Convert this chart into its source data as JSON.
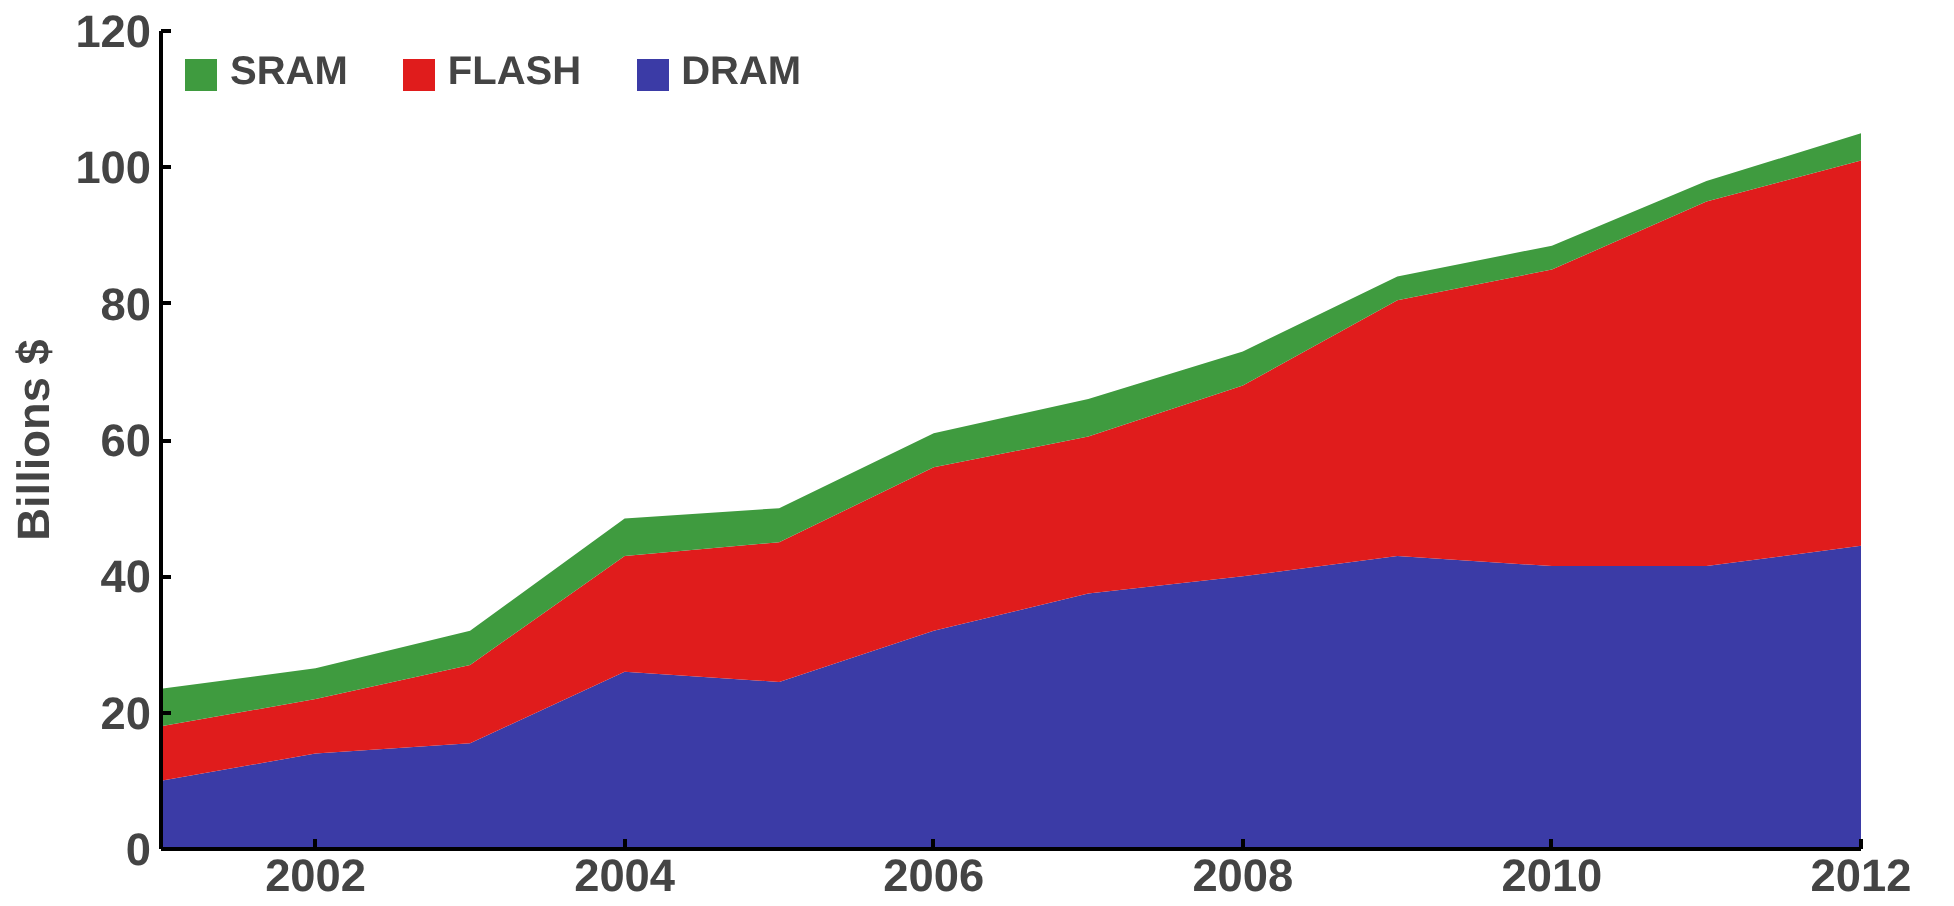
{
  "chart_data": {
    "type": "area",
    "stacked": true,
    "ylabel": "Billions $",
    "x": [
      2001,
      2002,
      2003,
      2004,
      2005,
      2006,
      2007,
      2008,
      2009,
      2010,
      2011,
      2012
    ],
    "series": [
      {
        "name": "DRAM",
        "color": "#3b3ba6",
        "values": [
          10,
          14,
          15.5,
          26,
          24.5,
          32,
          37.5,
          40,
          43,
          41.5,
          41.5,
          44.5
        ]
      },
      {
        "name": "FLASH",
        "color": "#e01c1c",
        "values": [
          8,
          8,
          11.5,
          17,
          20.5,
          24,
          23,
          28,
          37.5,
          43.5,
          53.5,
          56.5
        ]
      },
      {
        "name": "SRAM",
        "color": "#3f9b3f",
        "values": [
          5.5,
          4.5,
          5,
          5.5,
          5,
          5,
          5.5,
          5,
          3.5,
          3.5,
          3,
          4
        ]
      }
    ],
    "xlim": [
      2001,
      2012
    ],
    "xticks": [
      2002,
      2004,
      2006,
      2008,
      2010,
      2012
    ],
    "ylim": [
      0,
      120
    ],
    "yticks": [
      0,
      20,
      40,
      60,
      80,
      100,
      120
    ],
    "grid": false,
    "legend": "top left"
  }
}
